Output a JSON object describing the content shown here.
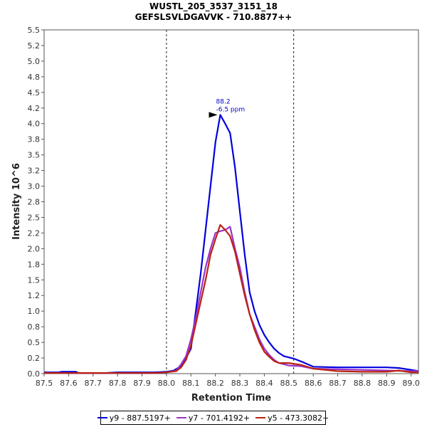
{
  "chart_data": {
    "type": "line",
    "title": "WUSTL_205_3537_3151_18",
    "subtitle": "GEFSLSVLDGAVVK - 710.8877++",
    "xlabel": "Retention Time",
    "ylabel": "Intensity 10^6",
    "xlim": [
      87.5,
      89.03
    ],
    "ylim": [
      0,
      5.5
    ],
    "x_ticks": [
      "87.5",
      "87.6",
      "87.7",
      "87.8",
      "87.9",
      "88.0",
      "88.1",
      "88.2",
      "88.3",
      "88.4",
      "88.5",
      "88.6",
      "88.7",
      "88.8",
      "88.9",
      "89.0"
    ],
    "y_ticks": [
      "0.0",
      "0.2",
      "0.5",
      "0.8",
      "1.0",
      "1.2",
      "1.5",
      "1.8",
      "2.0",
      "2.2",
      "2.5",
      "2.8",
      "3.0",
      "3.2",
      "3.5",
      "3.8",
      "4.0",
      "4.2",
      "4.5",
      "4.8",
      "5.0",
      "5.2",
      "5.5"
    ],
    "grid": false,
    "legend_position": "bottom",
    "boundaries": [
      88.0,
      88.52
    ],
    "annotation": {
      "x": 88.22,
      "y": 4.14,
      "line1": "88.2",
      "line2": "-6.5 ppm"
    },
    "series": [
      {
        "name": "y9 - 887.5197+",
        "color": "#0000dd",
        "points": [
          [
            87.5,
            0.02
          ],
          [
            87.56,
            0.02
          ],
          [
            87.57,
            0.03
          ],
          [
            87.63,
            0.03
          ],
          [
            87.64,
            0.01
          ],
          [
            87.75,
            0.01
          ],
          [
            87.8,
            0.02
          ],
          [
            87.95,
            0.02
          ],
          [
            88.0,
            0.03
          ],
          [
            88.03,
            0.05
          ],
          [
            88.06,
            0.12
          ],
          [
            88.08,
            0.25
          ],
          [
            88.1,
            0.4
          ],
          [
            88.12,
            1.0
          ],
          [
            88.14,
            1.6
          ],
          [
            88.16,
            2.3
          ],
          [
            88.18,
            3.0
          ],
          [
            88.2,
            3.7
          ],
          [
            88.22,
            4.14
          ],
          [
            88.24,
            4.0
          ],
          [
            88.26,
            3.85
          ],
          [
            88.28,
            3.3
          ],
          [
            88.3,
            2.6
          ],
          [
            88.32,
            1.9
          ],
          [
            88.34,
            1.3
          ],
          [
            88.36,
            1.0
          ],
          [
            88.38,
            0.78
          ],
          [
            88.4,
            0.62
          ],
          [
            88.42,
            0.5
          ],
          [
            88.44,
            0.4
          ],
          [
            88.46,
            0.33
          ],
          [
            88.48,
            0.28
          ],
          [
            88.52,
            0.24
          ],
          [
            88.56,
            0.18
          ],
          [
            88.6,
            0.11
          ],
          [
            88.7,
            0.1
          ],
          [
            88.8,
            0.1
          ],
          [
            88.9,
            0.1
          ],
          [
            88.95,
            0.09
          ],
          [
            89.0,
            0.06
          ],
          [
            89.03,
            0.04
          ]
        ]
      },
      {
        "name": "y7 - 701.4192+",
        "color": "#9933cc",
        "points": [
          [
            87.5,
            0.01
          ],
          [
            87.95,
            0.01
          ],
          [
            88.0,
            0.02
          ],
          [
            88.04,
            0.05
          ],
          [
            88.06,
            0.15
          ],
          [
            88.08,
            0.28
          ],
          [
            88.1,
            0.55
          ],
          [
            88.12,
            0.9
          ],
          [
            88.14,
            1.3
          ],
          [
            88.16,
            1.7
          ],
          [
            88.18,
            2.0
          ],
          [
            88.2,
            2.25
          ],
          [
            88.22,
            2.28
          ],
          [
            88.24,
            2.3
          ],
          [
            88.26,
            2.35
          ],
          [
            88.28,
            2.0
          ],
          [
            88.3,
            1.7
          ],
          [
            88.32,
            1.3
          ],
          [
            88.34,
            0.95
          ],
          [
            88.36,
            0.75
          ],
          [
            88.38,
            0.55
          ],
          [
            88.4,
            0.4
          ],
          [
            88.42,
            0.3
          ],
          [
            88.44,
            0.22
          ],
          [
            88.46,
            0.17
          ],
          [
            88.5,
            0.13
          ],
          [
            88.55,
            0.12
          ],
          [
            88.6,
            0.08
          ],
          [
            88.7,
            0.07
          ],
          [
            88.8,
            0.06
          ],
          [
            88.9,
            0.05
          ],
          [
            89.0,
            0.04
          ],
          [
            89.03,
            0.04
          ]
        ]
      },
      {
        "name": "y5 - 473.3082+",
        "color": "#bb2211",
        "points": [
          [
            87.5,
            0.01
          ],
          [
            87.95,
            0.01
          ],
          [
            88.0,
            0.02
          ],
          [
            88.04,
            0.04
          ],
          [
            88.06,
            0.1
          ],
          [
            88.08,
            0.22
          ],
          [
            88.1,
            0.45
          ],
          [
            88.12,
            0.8
          ],
          [
            88.14,
            1.15
          ],
          [
            88.16,
            1.5
          ],
          [
            88.18,
            1.9
          ],
          [
            88.2,
            2.15
          ],
          [
            88.22,
            2.38
          ],
          [
            88.24,
            2.3
          ],
          [
            88.26,
            2.2
          ],
          [
            88.28,
            1.95
          ],
          [
            88.3,
            1.6
          ],
          [
            88.32,
            1.25
          ],
          [
            88.34,
            0.95
          ],
          [
            88.36,
            0.7
          ],
          [
            88.38,
            0.5
          ],
          [
            88.4,
            0.35
          ],
          [
            88.42,
            0.27
          ],
          [
            88.44,
            0.2
          ],
          [
            88.46,
            0.17
          ],
          [
            88.5,
            0.17
          ],
          [
            88.55,
            0.14
          ],
          [
            88.6,
            0.08
          ],
          [
            88.7,
            0.04
          ],
          [
            88.8,
            0.03
          ],
          [
            88.9,
            0.03
          ],
          [
            88.95,
            0.05
          ],
          [
            89.0,
            0.02
          ],
          [
            89.03,
            0.02
          ]
        ]
      }
    ]
  }
}
